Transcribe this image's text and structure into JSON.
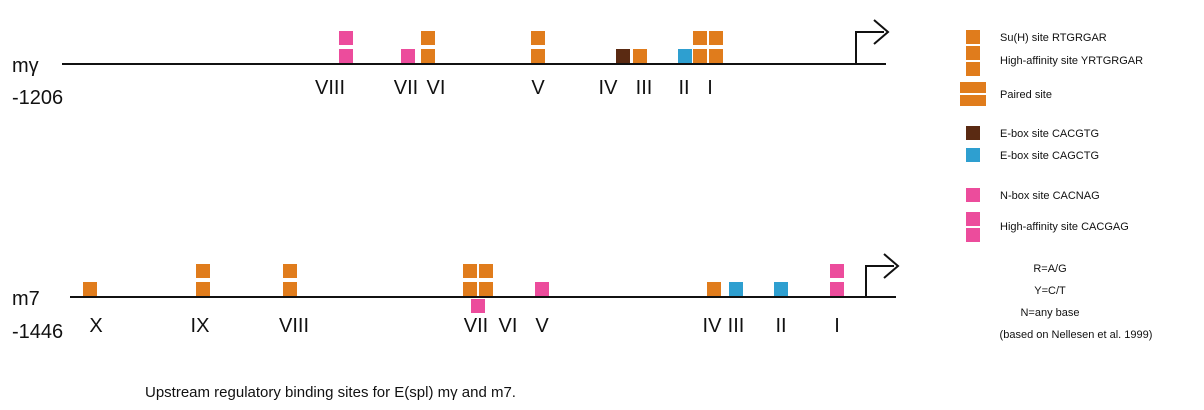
{
  "colors": {
    "orange": "#E07C1C",
    "brown": "#5A2A12",
    "blue": "#2E9FD0",
    "pink": "#EC4C9C",
    "gray": "#9a9a9a",
    "line": "#111111"
  },
  "tracks": [
    {
      "gene": "mγ",
      "start": "-1206",
      "sites": [
        {
          "label": "VIII",
          "marks": [
            {
              "color": "pink",
              "layout": "v2"
            }
          ]
        },
        {
          "label": "VII",
          "marks": [
            {
              "color": "pink",
              "layout": "single"
            }
          ]
        },
        {
          "label": "VI",
          "marks": [
            {
              "color": "orange",
              "layout": "v2"
            }
          ]
        },
        {
          "label": "V",
          "marks": [
            {
              "color": "orange",
              "layout": "v2"
            }
          ]
        },
        {
          "label": "IV",
          "marks": [
            {
              "color": "brown",
              "layout": "single"
            }
          ]
        },
        {
          "label": "III",
          "marks": [
            {
              "color": "orange",
              "layout": "single"
            }
          ]
        },
        {
          "label": "II",
          "marks": [
            {
              "color": "blue",
              "layout": "single"
            }
          ]
        },
        {
          "label": "I",
          "marks": [
            {
              "color": "orange",
              "layout": "grid"
            }
          ]
        }
      ]
    },
    {
      "gene": "m7",
      "start": "-1446",
      "sites": [
        {
          "label": "X",
          "marks": [
            {
              "color": "orange",
              "layout": "single"
            }
          ]
        },
        {
          "label": "IX",
          "marks": [
            {
              "color": "orange",
              "layout": "v2"
            }
          ]
        },
        {
          "label": "VIII",
          "marks": [
            {
              "color": "orange",
              "layout": "v2"
            }
          ]
        },
        {
          "label": "VII",
          "marks": [
            {
              "color": "orange",
              "layout": "grid"
            },
            {
              "color": "pink",
              "layout": "below"
            }
          ]
        },
        {
          "label": "VI",
          "marks": []
        },
        {
          "label": "V",
          "marks": [
            {
              "color": "pink",
              "layout": "single"
            }
          ]
        },
        {
          "label": "IV",
          "marks": [
            {
              "color": "orange",
              "layout": "single"
            }
          ]
        },
        {
          "label": "III",
          "marks": [
            {
              "color": "blue",
              "layout": "single"
            }
          ]
        },
        {
          "label": "II",
          "marks": [
            {
              "color": "blue",
              "layout": "single"
            }
          ]
        },
        {
          "label": "I",
          "label_color": "gray",
          "marks": [
            {
              "color": "pink",
              "layout": "v2"
            }
          ]
        }
      ]
    }
  ],
  "legend": [
    {
      "marker": "single",
      "color": "orange",
      "text": "Su(H) site RTGRGAR"
    },
    {
      "marker": "v2",
      "color": "orange",
      "text": "High-affinity site YRTGRGAR"
    },
    {
      "marker": "paired",
      "color": "orange",
      "text": "Paired site"
    },
    {
      "marker": "single",
      "color": "brown",
      "text": "E-box site CACGTG"
    },
    {
      "marker": "single",
      "color": "blue",
      "text": "E-box site CAGCTG"
    },
    {
      "marker": "single",
      "color": "pink",
      "text": "N-box site CACNAG"
    },
    {
      "marker": "v2",
      "color": "pink",
      "text": "High-affinity site CACGAG"
    }
  ],
  "key": [
    "R=A/G",
    "Y=C/T",
    "N=any base",
    "(based on Nellesen et al. 1999)"
  ],
  "caption": "Upstream regulatory binding sites for E(spl) mγ and m7."
}
